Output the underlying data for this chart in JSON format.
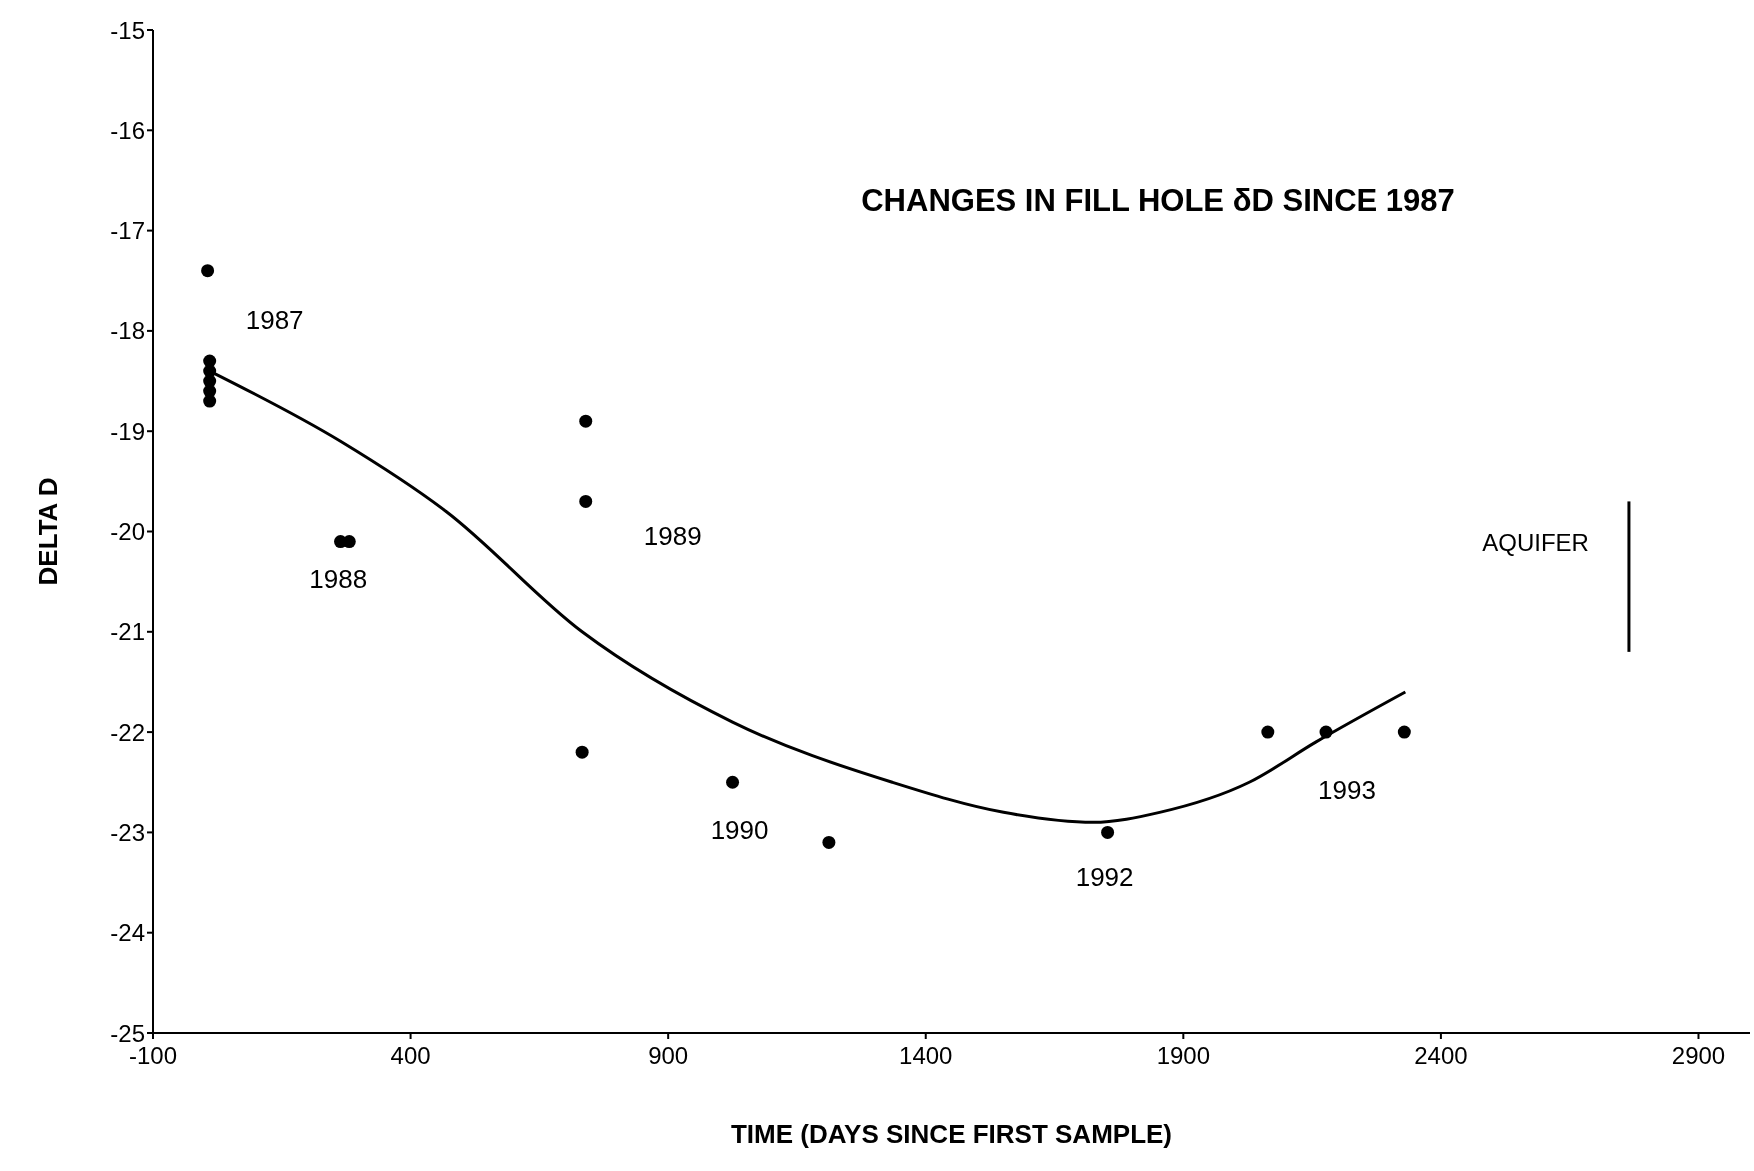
{
  "chart_data": {
    "type": "scatter",
    "title": "CHANGES IN FILL HOLE δD SINCE 1987",
    "xlabel": "TIME (DAYS SINCE FIRST SAMPLE)",
    "ylabel": "DELTA D",
    "xlim": [
      -100,
      3000
    ],
    "xticks": [
      -100,
      400,
      900,
      1400,
      1900,
      2400,
      2900
    ],
    "ylim": [
      -25,
      -15
    ],
    "yticks": [
      -25,
      -24,
      -23,
      -22,
      -21,
      -20,
      -19,
      -18,
      -17,
      -16,
      -15
    ],
    "grid": false,
    "legend": false,
    "series": [
      {
        "marker": "circle",
        "color": "#000000",
        "x": [
          6,
          10,
          10,
          10,
          10,
          10,
          264,
          281,
          740,
          740,
          733,
          1025,
          1212,
          1753,
          2064,
          2177,
          2329
        ],
        "values": [
          -17.4,
          -18.3,
          -18.4,
          -18.5,
          -18.6,
          -18.7,
          -20.1,
          -20.1,
          -18.9,
          -19.7,
          -22.2,
          -22.5,
          -23.1,
          -23.0,
          -22.0,
          -22.0,
          -22.0
        ]
      },
      {
        "type": "line",
        "marker": "none",
        "color": "#000000",
        "x": [
          10,
          264,
          469,
          733,
          1025,
          1335,
          1551,
          1725,
          1854,
          2028,
          2157,
          2331
        ],
        "values": [
          -18.4,
          -19.1,
          -19.8,
          -21.0,
          -21.9,
          -22.5,
          -22.8,
          -22.9,
          -22.8,
          -22.5,
          -22.1,
          -21.6
        ]
      },
      {
        "type": "line",
        "marker": "none",
        "name": "AQUIFER",
        "color": "#000000",
        "x": [
          2765,
          2765
        ],
        "values": [
          -19.7,
          -21.2
        ]
      }
    ],
    "annotations": [
      {
        "text": "1987",
        "x": 10,
        "y": -18.3
      },
      {
        "text": "1988",
        "x": 281,
        "y": -20.1
      },
      {
        "text": "1989",
        "x": 740,
        "y": -19.7
      },
      {
        "text": "1990",
        "x": 1025,
        "y": -22.5
      },
      {
        "text": "1992",
        "x": 1753,
        "y": -23.0
      },
      {
        "text": "1993",
        "x": 2177,
        "y": -22.0
      }
    ]
  }
}
